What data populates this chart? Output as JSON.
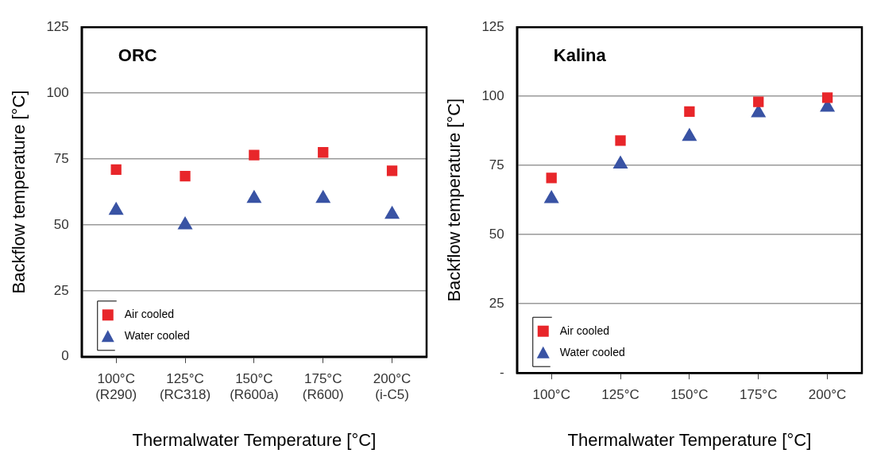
{
  "chart_data": [
    {
      "type": "scatter",
      "title": "ORC",
      "xlabel": "Thermalwater Temperature [°C]",
      "ylabel": "Backflow temperature [°C]",
      "categories": [
        "100°C\n(R290)",
        "125°C\n(RC318)",
        "150°C\n(R600a)",
        "175°C\n(R600)",
        "200°C\n(i-C5)"
      ],
      "series": [
        {
          "name": "Air cooled",
          "color": "#e8262a",
          "marker": "square",
          "values": [
            71,
            68.5,
            76.5,
            77.5,
            70.5
          ]
        },
        {
          "name": "Water cooled",
          "color": "#3953a4",
          "marker": "triangle",
          "values": [
            55.5,
            50,
            60,
            60,
            54
          ]
        }
      ],
      "ylim": [
        0,
        125
      ],
      "yticks": [
        0,
        25,
        50,
        75,
        100,
        125
      ],
      "grid": "y",
      "legend": "bottom left"
    },
    {
      "type": "scatter",
      "title": "Kalina",
      "xlabel": "Thermalwater Temperature [°C]",
      "ylabel": "Backflow temperature [°C]",
      "categories": [
        "100°C",
        "125°C",
        "150°C",
        "175°C",
        "200°C"
      ],
      "series": [
        {
          "name": "Air cooled",
          "color": "#e8262a",
          "marker": "square",
          "values": [
            70.5,
            84,
            94.5,
            98,
            99.5
          ]
        },
        {
          "name": "Water cooled",
          "color": "#3953a4",
          "marker": "triangle",
          "values": [
            63,
            75.5,
            85.5,
            94,
            96
          ]
        }
      ],
      "ylim": [
        0,
        125
      ],
      "yticks": [
        {
          "value": 0,
          "label": "-"
        },
        25,
        50,
        75,
        100,
        125
      ],
      "grid": "y",
      "legend": "bottom left"
    }
  ]
}
